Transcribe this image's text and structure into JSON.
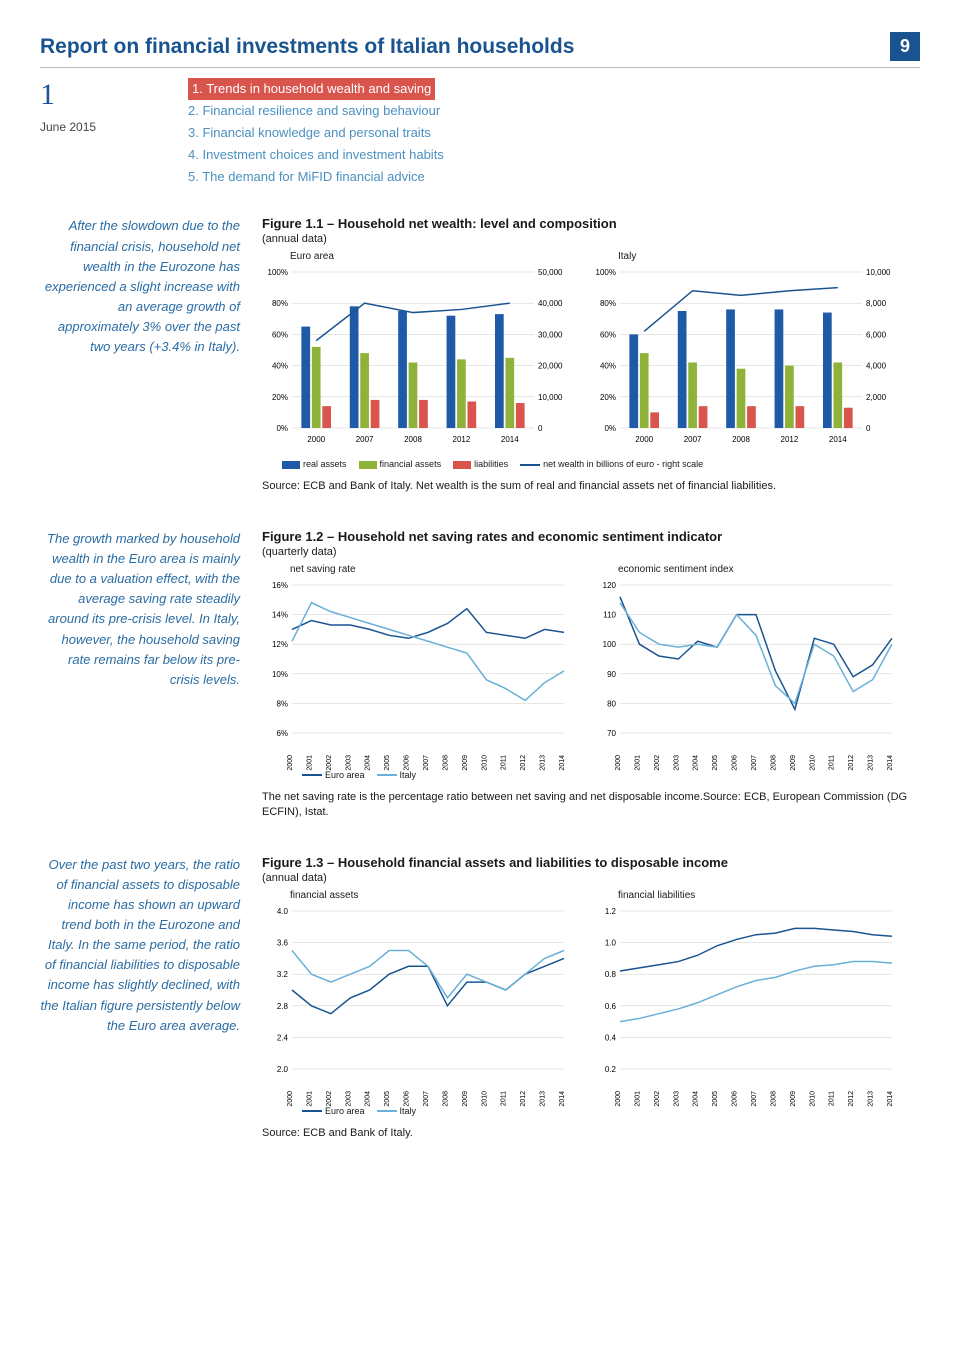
{
  "header": {
    "title": "Report on financial investments of Italian households",
    "page_number": "9",
    "section_number": "1",
    "date": "June 2015"
  },
  "toc": [
    {
      "n": "1.",
      "t": "Trends in household wealth and saving",
      "active": true
    },
    {
      "n": "2.",
      "t": "Financial resilience and saving behaviour",
      "active": false
    },
    {
      "n": "3.",
      "t": "Financial knowledge and personal traits",
      "active": false
    },
    {
      "n": "4.",
      "t": "Investment choices and investment habits",
      "active": false
    },
    {
      "n": "5.",
      "t": "The demand for MiFID financial advice",
      "active": false
    }
  ],
  "colors": {
    "brand": "#1a5490",
    "link": "#4a90c0",
    "highlight": "#d9544d",
    "bar_real": "#1e5aa8",
    "bar_fin": "#8fb339",
    "bar_liab": "#d9544d",
    "line_dark": "#1a5490",
    "line_light": "#6ab0d8",
    "grid": "#cccccc"
  },
  "fig1": {
    "title": "Figure 1.1 – Household net wealth: level and composition",
    "subtitle": "(annual data)",
    "side": "After the slowdown due to the financial crisis, household net wealth in the Eurozone has experienced a slight increase with an average growth of approximately 3% over the past two years (+3.4% in Italy).",
    "panels": [
      {
        "label": "Euro area",
        "years": [
          "2000",
          "2007",
          "2008",
          "2012",
          "2014"
        ],
        "left_ticks": [
          "100%",
          "80%",
          "60%",
          "40%",
          "20%",
          "0%"
        ],
        "right_ticks": [
          "50,000",
          "40,000",
          "30,000",
          "20,000",
          "10,000",
          "0"
        ],
        "real": [
          65,
          78,
          75,
          72,
          73
        ],
        "fin": [
          52,
          48,
          42,
          44,
          45
        ],
        "liab": [
          14,
          18,
          18,
          17,
          16
        ],
        "line": [
          56,
          80,
          74,
          76,
          80
        ],
        "right_max": 50000
      },
      {
        "label": "Italy",
        "years": [
          "2000",
          "2007",
          "2008",
          "2012",
          "2014"
        ],
        "left_ticks": [
          "100%",
          "80%",
          "60%",
          "40%",
          "20%",
          "0%"
        ],
        "right_ticks": [
          "10,000",
          "8,000",
          "6,000",
          "4,000",
          "2,000",
          "0"
        ],
        "real": [
          60,
          75,
          76,
          76,
          74
        ],
        "fin": [
          48,
          42,
          38,
          40,
          42
        ],
        "liab": [
          10,
          14,
          14,
          14,
          13
        ],
        "line": [
          62,
          88,
          85,
          88,
          90
        ],
        "right_max": 10000
      }
    ],
    "legend": [
      "real assets",
      "financial assets",
      "liabilities",
      "net wealth in billions of euro - right scale"
    ],
    "source": "Source: ECB and Bank of Italy. Net wealth is the sum of real and financial assets net of financial liabilities."
  },
  "fig2": {
    "title": "Figure 1.2 – Household net saving rates and economic sentiment indicator",
    "subtitle": "(quarterly data)",
    "side": "The growth marked by household wealth in the Euro area is mainly due to a valuation effect, with the average saving rate steadily around its pre-crisis level. In Italy, however, the household saving rate remains far below its pre-crisis levels.",
    "panels": [
      {
        "label": "net saving rate",
        "y_ticks": [
          "16%",
          "14%",
          "12%",
          "10%",
          "8%",
          "6%"
        ],
        "y_min": 6,
        "y_max": 16,
        "x_years": [
          "2000",
          "2001",
          "2002",
          "2003",
          "2004",
          "2005",
          "2006",
          "2007",
          "2008",
          "2009",
          "2010",
          "2011",
          "2012",
          "2013",
          "2014"
        ],
        "series": {
          "euro": [
            13.0,
            13.6,
            13.3,
            13.3,
            13.0,
            12.6,
            12.4,
            12.8,
            13.4,
            14.4,
            12.8,
            12.6,
            12.4,
            13.0,
            12.8
          ],
          "italy": [
            12.2,
            14.8,
            14.2,
            13.8,
            13.4,
            13.0,
            12.6,
            12.2,
            11.8,
            11.4,
            9.6,
            9.0,
            8.2,
            9.4,
            10.2
          ]
        },
        "legend": [
          "Euro area",
          "Italy"
        ]
      },
      {
        "label": "economic sentiment index",
        "y_ticks": [
          "120",
          "110",
          "100",
          "90",
          "80",
          "70"
        ],
        "y_min": 70,
        "y_max": 120,
        "x_years": [
          "2000",
          "2001",
          "2002",
          "2003",
          "2004",
          "2005",
          "2006",
          "2007",
          "2008",
          "2009",
          "2010",
          "2011",
          "2012",
          "2013",
          "2014"
        ],
        "series": {
          "euro": [
            116,
            100,
            96,
            95,
            101,
            99,
            110,
            110,
            91,
            78,
            102,
            100,
            89,
            93,
            102
          ],
          "italy": [
            114,
            104,
            100,
            99,
            100,
            99,
            110,
            103,
            86,
            80,
            100,
            96,
            84,
            88,
            100
          ]
        }
      }
    ],
    "source": "The net saving rate is the percentage ratio between net saving and net disposable income.Source: ECB, European Commission (DG ECFIN), Istat."
  },
  "fig3": {
    "title": "Figure 1.3 – Household financial assets and liabilities to disposable income",
    "subtitle": "(annual data)",
    "side": "Over the past two years, the ratio of financial assets to disposable income has shown an upward trend both in the Eurozone and Italy. In the same period, the ratio of financial liabilities to disposable income has slightly declined, with the Italian figure persistently below the Euro area average.",
    "panels": [
      {
        "label": "financial assets",
        "y_ticks": [
          "4.0",
          "3.6",
          "3.2",
          "2.8",
          "2.4",
          "2.0"
        ],
        "y_min": 2.0,
        "y_max": 4.0,
        "x_years": [
          "2000",
          "2001",
          "2002",
          "2003",
          "2004",
          "2005",
          "2006",
          "2007",
          "2008",
          "2009",
          "2010",
          "2011",
          "2012",
          "2013",
          "2014"
        ],
        "series": {
          "euro": [
            3.0,
            2.8,
            2.7,
            2.9,
            3.0,
            3.2,
            3.3,
            3.3,
            2.8,
            3.1,
            3.1,
            3.0,
            3.2,
            3.3,
            3.4
          ],
          "italy": [
            3.5,
            3.2,
            3.1,
            3.2,
            3.3,
            3.5,
            3.5,
            3.3,
            2.9,
            3.2,
            3.1,
            3.0,
            3.2,
            3.4,
            3.5
          ]
        },
        "legend": [
          "Euro area",
          "Italy"
        ]
      },
      {
        "label": "financial liabilities",
        "y_ticks": [
          "1.2",
          "1.0",
          "0.8",
          "0.6",
          "0.4",
          "0.2"
        ],
        "y_min": 0.2,
        "y_max": 1.2,
        "x_years": [
          "2000",
          "2001",
          "2002",
          "2003",
          "2004",
          "2005",
          "2006",
          "2007",
          "2008",
          "2009",
          "2010",
          "2011",
          "2012",
          "2013",
          "2014"
        ],
        "series": {
          "euro": [
            0.82,
            0.84,
            0.86,
            0.88,
            0.92,
            0.98,
            1.02,
            1.05,
            1.06,
            1.09,
            1.09,
            1.08,
            1.07,
            1.05,
            1.04
          ],
          "italy": [
            0.5,
            0.52,
            0.55,
            0.58,
            0.62,
            0.67,
            0.72,
            0.76,
            0.78,
            0.82,
            0.85,
            0.86,
            0.88,
            0.88,
            0.87
          ]
        }
      }
    ],
    "source": "Source: ECB and Bank of Italy."
  }
}
